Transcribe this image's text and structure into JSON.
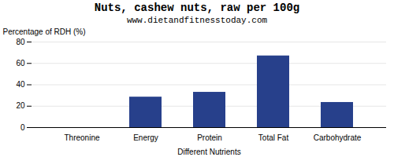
{
  "chart_data": {
    "type": "bar",
    "title": "Nuts, cashew nuts, raw per 100g",
    "subtitle": "www.dietandfitnesstoday.com",
    "xlabel": "Different Nutrients",
    "ylabel": "Percentage of RDH (%)",
    "categories": [
      "Threonine",
      "Energy",
      "Protein",
      "Total Fat",
      "Carbohydrate"
    ],
    "values": [
      0,
      28.5,
      33,
      67,
      23.5
    ],
    "color": "#27408B",
    "ylim": [
      0,
      80
    ],
    "yticks": [
      0,
      20,
      40,
      60,
      80
    ],
    "grid": true
  }
}
